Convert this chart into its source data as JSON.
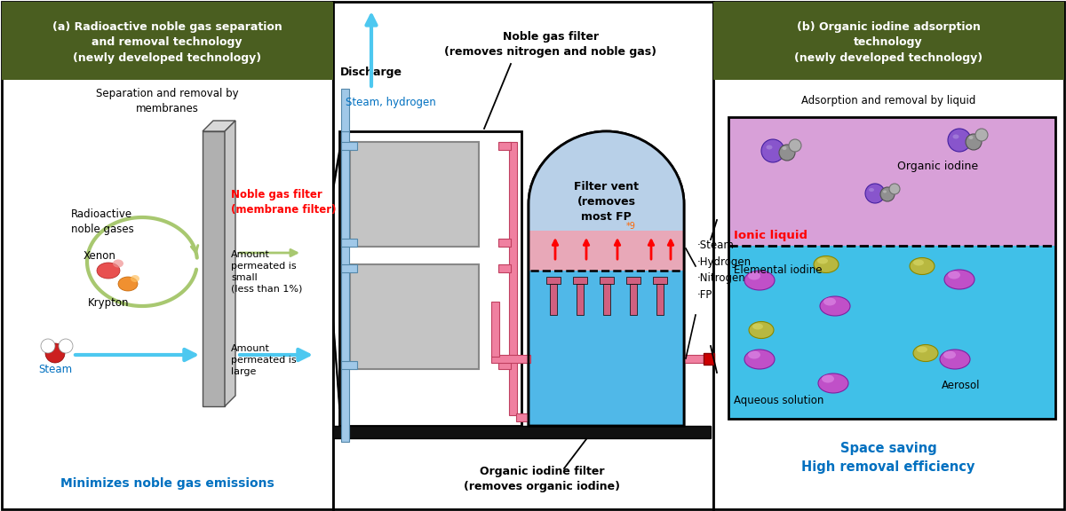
{
  "fig_width": 12.0,
  "fig_height": 5.76,
  "dpi": 100,
  "bg_color": "#ffffff",
  "header_color": "#4a5e20",
  "header_text_color": "#ffffff",
  "panel_a_header": "(a) Radioactive noble gas separation\nand removal technology\n(newly developed technology)",
  "panel_b_header": "(b) Organic iodine adsorption\ntechnology\n(newly developed technology)",
  "panel_a_subtitle": "Separation and removal by\nmembranes",
  "panel_b_subtitle": "Adsorption and removal by liquid",
  "panel_a_bottom_text": "Minimizes noble gas emissions",
  "panel_b_bottom_text": "Space saving\nHigh removal efficiency",
  "blue_text_color": "#0070c0",
  "red_text_color": "#ff0000",
  "green_arrow_color": "#a8c870",
  "cyan_arrow_color": "#4dc8f0",
  "pink_pipe_color": "#f080a0",
  "light_blue_pipe": "#a0c8e8",
  "filter_vent_bg": "#b8d0e8",
  "liquid_blue": "#50b8e8",
  "liquid_pink": "#e8a0b0",
  "ionic_liquid_color": "#d8a0d8",
  "aqueous_color": "#40c0e8",
  "noble_gas_filter_label": "Noble gas filter\n(removes nitrogen and noble gas)",
  "discharge_label": "Discharge",
  "steam_hydrogen_label": "Steam, hydrogen",
  "filter_vent_label": "Filter vent\n(removes\nmost FP",
  "fp_superscript": "*9",
  "organic_iodine_filter_label": "Organic iodine filter\n(removes organic iodine)",
  "noble_gas_filter_membrane_label": "Noble gas filter\n(membrane filter)",
  "radioactive_gases_label": "Radioactive\nnoble gases",
  "xenon_label": "Xenon",
  "krypton_label": "Krypton",
  "steam_label": "Steam",
  "amount_small_label": "Amount\npermeated is\nsmall\n(less than 1%)",
  "amount_large_label": "Amount\npermeated is\nlarge",
  "fp_list": "·Steam\n·Hydrogen\n·Nitrogen\n·FP",
  "organic_iodine_label": "Organic iodine",
  "ionic_liquid_label": "Ionic liquid",
  "elemental_iodine_label": "Elemental iodine",
  "aerosol_label": "Aerosol",
  "aqueous_solution_label": "Aqueous solution"
}
